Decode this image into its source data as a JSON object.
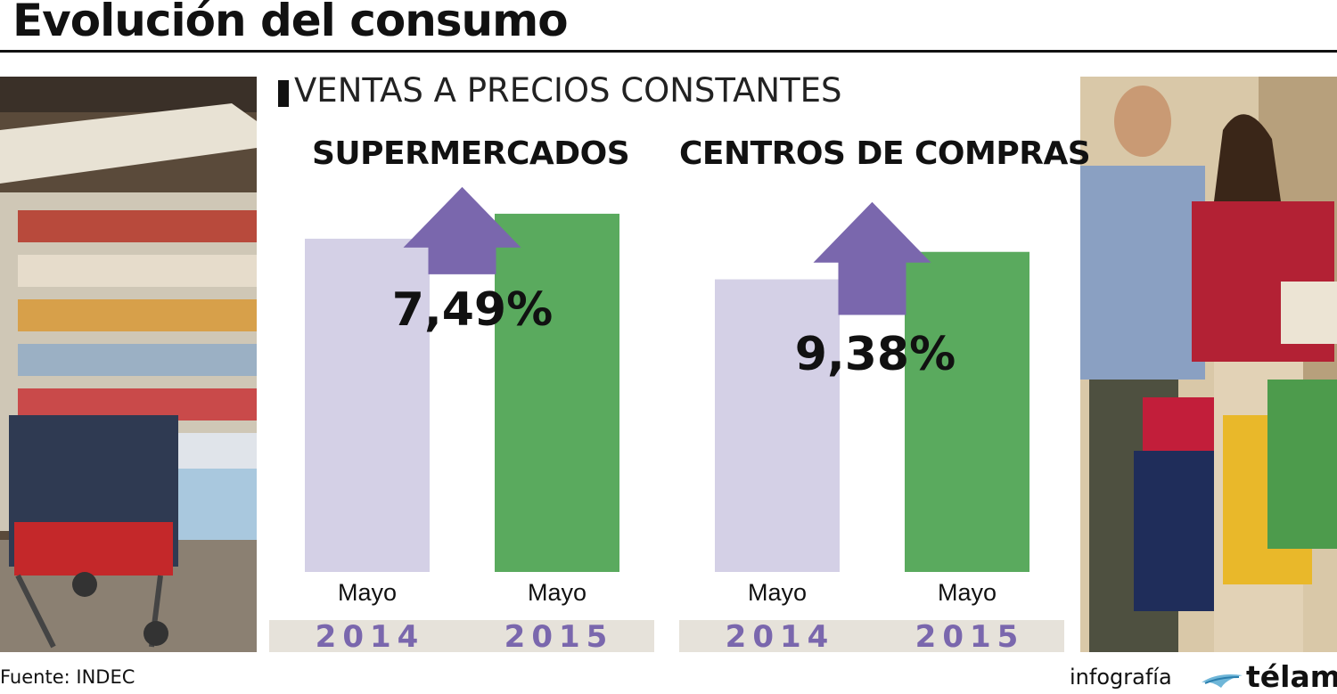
{
  "title": "Evolución del consumo",
  "subtitle": "VENTAS A PRECIOS CONSTANTES",
  "source": "Fuente: INDEC",
  "credit": {
    "word": "infografía",
    "brand": "télam"
  },
  "colors": {
    "bar_2014": "#d4d0e6",
    "bar_2015": "#5aaa5e",
    "arrow": "#7a67ad",
    "year_text": "#7a67ad",
    "year_band": "#e6e2da"
  },
  "chart_data": [
    {
      "type": "bar",
      "title": "SUPERMERCADOS",
      "categories": [
        "Mayo 2014",
        "Mayo 2015"
      ],
      "months": [
        "Mayo",
        "Mayo"
      ],
      "years": [
        "2014",
        "2015"
      ],
      "values": [
        100,
        107.49
      ],
      "change_label": "7,49%",
      "ylim": [
        0,
        108
      ]
    },
    {
      "type": "bar",
      "title": "CENTROS DE COMPRAS",
      "categories": [
        "Mayo 2014",
        "Mayo 2015"
      ],
      "months": [
        "Mayo",
        "Mayo"
      ],
      "years": [
        "2014",
        "2015"
      ],
      "values": [
        100,
        109.38
      ],
      "change_label": "9,38%",
      "ylim": [
        0,
        123
      ]
    }
  ]
}
